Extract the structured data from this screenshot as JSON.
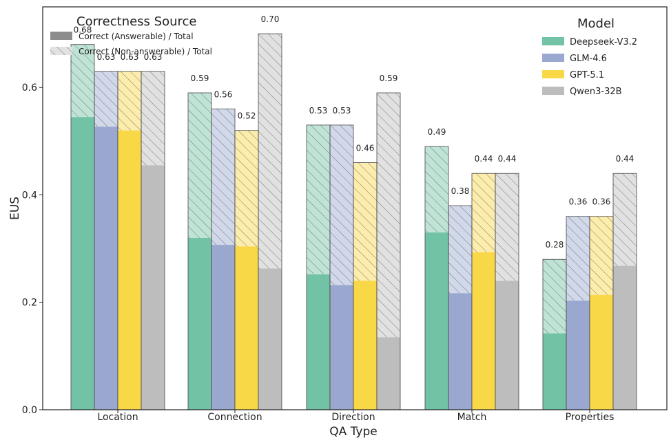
{
  "chart_data": {
    "type": "bar",
    "xlabel": "QA Type",
    "ylabel": "EUS",
    "ylim": [
      0,
      0.75
    ],
    "yticks": [
      "0.0",
      "0.2",
      "0.4",
      "0.6"
    ],
    "ytick_values": [
      0.0,
      0.2,
      0.4,
      0.6
    ],
    "categories": [
      "Location",
      "Connection",
      "Direction",
      "Match",
      "Properties"
    ],
    "series": [
      {
        "name": "Deepseek-V3.2",
        "color": "#72c3a5",
        "answerable": [
          0.545,
          0.32,
          0.252,
          0.33,
          0.142
        ],
        "totals": [
          0.68,
          0.59,
          0.53,
          0.49,
          0.28
        ],
        "labels": [
          "0.68",
          "0.59",
          "0.53",
          "0.49",
          "0.28"
        ]
      },
      {
        "name": "GLM-4.6",
        "color": "#9aa8d0",
        "answerable": [
          0.527,
          0.307,
          0.232,
          0.217,
          0.203
        ],
        "totals": [
          0.63,
          0.56,
          0.53,
          0.38,
          0.36
        ],
        "labels": [
          "0.63",
          "0.56",
          "0.53",
          "0.38",
          "0.36"
        ]
      },
      {
        "name": "GPT-5.1",
        "color": "#f9d848",
        "answerable": [
          0.52,
          0.304,
          0.24,
          0.293,
          0.214
        ],
        "totals": [
          0.63,
          0.52,
          0.46,
          0.44,
          0.36
        ],
        "labels": [
          "0.63",
          "0.52",
          "0.46",
          "0.44",
          "0.36"
        ]
      },
      {
        "name": "Qwen3-32B",
        "color": "#bdbdbd",
        "answerable": [
          0.455,
          0.263,
          0.135,
          0.24,
          0.268
        ],
        "totals": [
          0.63,
          0.7,
          0.59,
          0.44,
          0.44
        ],
        "labels": [
          "0.63",
          "0.70",
          "0.59",
          "0.44",
          "0.44"
        ]
      }
    ],
    "legend_source": {
      "title": "Correctness Source",
      "items": [
        "Correct (Answerable) / Total",
        "Correct (Non-answerable) / Total"
      ]
    },
    "legend_model": {
      "title": "Model"
    },
    "grid": false
  }
}
